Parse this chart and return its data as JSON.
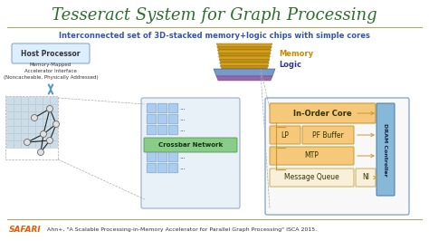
{
  "title": "Tesseract System for Graph Processing",
  "subtitle": "Interconnected set of 3D-stacked memory+logic chips with simple cores",
  "bg_color": "#ffffff",
  "title_color": "#2d6e2d",
  "subtitle_color": "#3355aa",
  "safari_color": "#e85c00",
  "safari_text": "SAFARI",
  "citation": "Ahn+, \"A Scalable Processing-in-Memory Accelerator for Parallel Graph Processing\" ISCA 2015.",
  "host_box_color": "#ddeeff",
  "host_box_edge": "#88aacc",
  "memory_color": "#cc8800",
  "logic_color": "#333388",
  "crossbar_net_color": "#88cc88",
  "inorder_box_color": "#f5c87a",
  "inorder_edge_color": "#cc9933",
  "dram_box_color": "#88b8d8",
  "right_panel_bg": "#f8f8f8",
  "right_panel_edge": "#88aacc",
  "crossbar_panel_bg": "#e8f0f8",
  "crossbar_panel_edge": "#99aacc",
  "cb_sq_color": "#aaccee",
  "cb_sq_edge": "#7799bb",
  "grid_sq_color": "#ccdde8",
  "grid_sq_edge": "#aabbcc",
  "separator_color": "#aaaa66",
  "text_dark": "#333333",
  "text_light": "#555555",
  "arrow_blue": "#5599cc",
  "mq_box_color": "#f8f0d8",
  "mq_box_edge": "#ccaa55"
}
